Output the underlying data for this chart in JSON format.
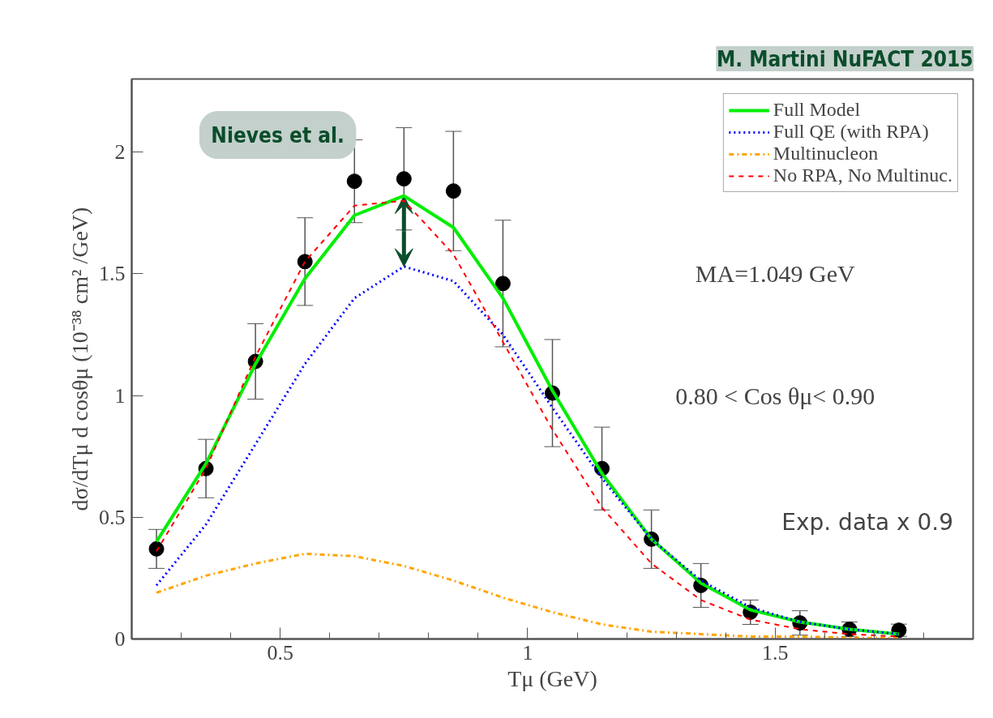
{
  "chart_data": {
    "type": "line",
    "xlabel": "Tμ (GeV)",
    "ylabel": "dσ/dTμ d cosθμ (10⁻³⁸ cm² /GeV)",
    "x": [
      0.25,
      0.35,
      0.45,
      0.55,
      0.65,
      0.75,
      0.85,
      0.95,
      1.05,
      1.15,
      1.25,
      1.35,
      1.45,
      1.55,
      1.65,
      1.75
    ],
    "series": [
      {
        "name": "Full Model",
        "color": "#00ee00",
        "line_style": "solid",
        "values": [
          0.4,
          0.72,
          1.13,
          1.48,
          1.74,
          1.82,
          1.69,
          1.4,
          1.02,
          0.68,
          0.41,
          0.23,
          0.12,
          0.07,
          0.04,
          0.02
        ]
      },
      {
        "name": "Full QE (with RPA)",
        "color": "#0000ff",
        "line_style": "dotted",
        "values": [
          0.22,
          0.47,
          0.8,
          1.13,
          1.4,
          1.53,
          1.47,
          1.25,
          0.95,
          0.66,
          0.41,
          0.24,
          0.13,
          0.07,
          0.04,
          0.02
        ]
      },
      {
        "name": "Multinucleon",
        "color": "#ffa500",
        "line_style": "dashdot",
        "values": [
          0.19,
          0.26,
          0.31,
          0.35,
          0.34,
          0.3,
          0.24,
          0.17,
          0.11,
          0.06,
          0.03,
          0.02,
          0.01,
          0.01,
          0.005,
          0.003
        ]
      },
      {
        "name": "No RPA, No Multinuc.",
        "color": "#ff0000",
        "line_style": "dashed",
        "values": [
          0.36,
          0.7,
          1.16,
          1.55,
          1.78,
          1.8,
          1.58,
          1.22,
          0.86,
          0.54,
          0.31,
          0.16,
          0.08,
          0.04,
          0.02,
          0.01
        ]
      },
      {
        "type": "scatter",
        "color": "#000000",
        "marker": "circle",
        "values": [
          0.37,
          0.7,
          1.14,
          1.55,
          1.88,
          1.89,
          1.84,
          1.46,
          1.01,
          0.7,
          0.41,
          0.22,
          0.11,
          0.066,
          0.04,
          0.036
        ],
        "errors": [
          0.08,
          0.12,
          0.155,
          0.18,
          0.17,
          0.21,
          0.245,
          0.26,
          0.22,
          0.17,
          0.12,
          0.09,
          0.05,
          0.05,
          0.03,
          0.025
        ]
      }
    ],
    "xlim": [
      0.2,
      1.9
    ],
    "xticks": [
      {
        "value": 0.3,
        "label": null
      },
      {
        "value": 0.4,
        "label": null
      },
      {
        "value": 0.5,
        "label": "0.5"
      },
      {
        "value": 0.6,
        "label": null
      },
      {
        "value": 0.7,
        "label": null
      },
      {
        "value": 0.8,
        "label": null
      },
      {
        "value": 0.9,
        "label": null
      },
      1,
      {
        "value": 1.1,
        "label": null
      },
      {
        "value": 1.2,
        "label": null
      },
      {
        "value": 1.3,
        "label": null
      },
      {
        "value": 1.4,
        "label": null
      },
      {
        "value": 1.5,
        "label": "1.5"
      },
      {
        "value": 1.6,
        "label": null
      },
      {
        "value": 1.7,
        "label": null
      },
      {
        "value": 1.8,
        "label": null
      }
    ],
    "ylim": [
      0,
      2.3
    ],
    "yticks": [
      0,
      {
        "value": 0.5,
        "label": "0.5"
      },
      1,
      {
        "value": 1.5,
        "label": "1.5"
      },
      2
    ],
    "grid": false,
    "legend": "top right",
    "annotations": [
      "MA=1.049 GeV",
      "0.80 < Cos θμ< 0.90",
      "Exp. data x 0.9",
      "Nieves et al.",
      "M. Martini NuFACT 2015"
    ]
  }
}
